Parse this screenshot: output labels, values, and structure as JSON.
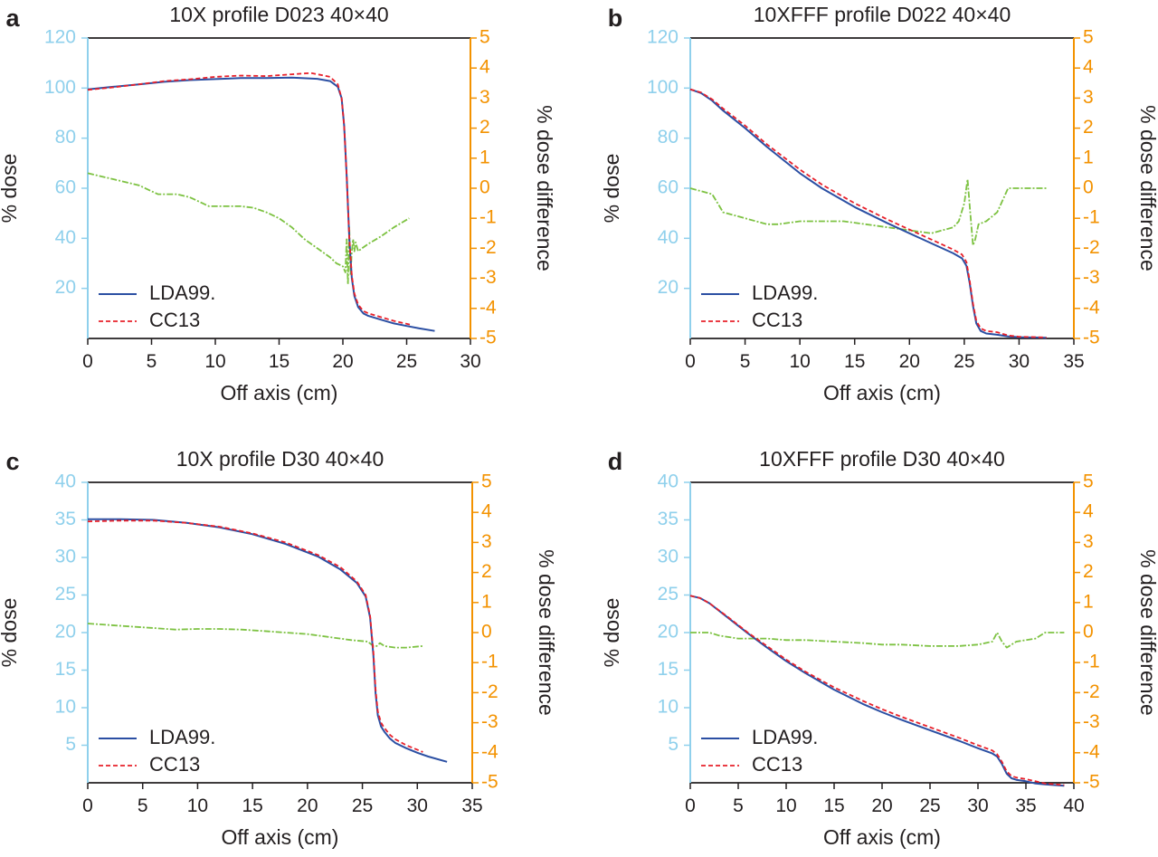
{
  "figure": {
    "colors": {
      "left_axis": "#8fd0ec",
      "right_axis": "#f39200",
      "lda99": "#2b4fa3",
      "cc13": "#e8202a",
      "difference": "#7dc242",
      "text": "#231f20"
    }
  },
  "chart_data": [
    {
      "panel": "a",
      "type": "line",
      "title": "10X profile D023 40×40",
      "xlabel": "Off axis (cm)",
      "ylabel": "% dose",
      "y2label": "% dose difference",
      "xlim": [
        0,
        30
      ],
      "xticks": [
        0,
        5,
        10,
        15,
        20,
        25,
        30
      ],
      "ylim": [
        0,
        120
      ],
      "yticks": [
        20,
        40,
        60,
        80,
        100,
        120
      ],
      "y2lim": [
        -5,
        5
      ],
      "y2ticks": [
        -5,
        -4,
        -3,
        -2,
        -1,
        0,
        1,
        2,
        3,
        4,
        5
      ],
      "legend": {
        "placement": "bottom-left",
        "entries": [
          "LDA99.",
          "CC13"
        ]
      },
      "series": [
        {
          "name": "LDA99.",
          "axis": "left",
          "style": "solid",
          "x": [
            0,
            2,
            4,
            6,
            8,
            10,
            12,
            14,
            16,
            18,
            19,
            19.6,
            19.9,
            20.1,
            20.3,
            20.5,
            20.7,
            20.9,
            21.2,
            21.6,
            22,
            23,
            24,
            25,
            26,
            27.2
          ],
          "y": [
            99.5,
            100.5,
            101.5,
            102.5,
            103.2,
            103.6,
            104,
            104,
            104.2,
            103.7,
            102.8,
            100.5,
            96,
            85,
            65,
            40,
            24,
            17,
            12.5,
            10,
            9,
            7.5,
            6,
            5,
            4,
            3
          ]
        },
        {
          "name": "CC13",
          "axis": "left",
          "style": "dashed",
          "x": [
            0,
            2,
            4,
            6,
            8,
            10,
            12,
            14,
            16,
            17.5,
            19,
            19.6,
            19.9,
            20.1,
            20.3,
            20.5,
            20.7,
            20.9,
            21.2,
            21.6,
            22,
            23,
            24,
            25.3
          ],
          "y": [
            99.3,
            100.3,
            101.5,
            102.8,
            103.5,
            104.5,
            105,
            104.8,
            105.5,
            106,
            104.5,
            101.5,
            96,
            85,
            65,
            40,
            25,
            18,
            13.5,
            11,
            10,
            8.5,
            7,
            5.5
          ]
        },
        {
          "name": "",
          "axis": "right",
          "style": "dash-dot",
          "x": [
            0,
            1,
            2,
            3,
            4,
            5,
            5.5,
            6,
            7,
            8,
            9,
            9.5,
            10,
            11,
            12,
            13,
            14,
            15,
            16,
            17,
            18,
            19,
            19.5,
            20,
            20.2,
            20.3,
            20.4,
            20.5,
            20.6,
            20.7,
            20.8,
            20.9,
            21,
            21.2,
            21.5,
            22,
            23,
            24,
            25.2
          ],
          "y": [
            0.5,
            0.4,
            0.3,
            0.2,
            0.1,
            -0.1,
            -0.2,
            -0.2,
            -0.2,
            -0.3,
            -0.5,
            -0.6,
            -0.6,
            -0.6,
            -0.6,
            -0.65,
            -0.8,
            -1,
            -1.3,
            -1.7,
            -2,
            -2.3,
            -2.5,
            -2.6,
            -2.8,
            -1.7,
            -3.2,
            -1.3,
            -2.9,
            -2.1,
            -1.7,
            -2.1,
            -1.8,
            -2.1,
            -2.0,
            -1.85,
            -1.6,
            -1.3,
            -1.0
          ]
        }
      ]
    },
    {
      "panel": "b",
      "type": "line",
      "title": "10XFFF profile D022 40×40",
      "xlabel": "Off axis (cm)",
      "ylabel": "% dose",
      "y2label": "% dose difference",
      "xlim": [
        0,
        35
      ],
      "xticks": [
        0,
        5,
        10,
        15,
        20,
        25,
        30,
        35
      ],
      "ylim": [
        0,
        120
      ],
      "yticks": [
        20,
        40,
        60,
        80,
        100,
        120
      ],
      "y2lim": [
        -5,
        5
      ],
      "y2ticks": [
        -5,
        -4,
        -3,
        -2,
        -1,
        0,
        1,
        2,
        3,
        4,
        5
      ],
      "legend": {
        "placement": "bottom-left",
        "entries": [
          "LDA99.",
          "CC13"
        ]
      },
      "series": [
        {
          "name": "LDA99.",
          "axis": "left",
          "style": "solid",
          "x": [
            0,
            1,
            2,
            3,
            5,
            7,
            10,
            12,
            15,
            18,
            20,
            22,
            24,
            24.8,
            25.2,
            25.5,
            25.8,
            26.1,
            26.5,
            27,
            28,
            29,
            30,
            32.5
          ],
          "y": [
            99.5,
            98,
            95,
            91,
            84,
            76.5,
            66,
            60,
            52.5,
            46,
            42,
            38,
            34,
            32,
            29,
            22,
            13,
            6,
            3,
            2,
            1.5,
            0.8,
            0.5,
            0.3
          ]
        },
        {
          "name": "CC13",
          "axis": "left",
          "style": "dashed",
          "x": [
            0,
            1,
            2,
            3,
            5,
            7,
            10,
            12,
            15,
            18,
            20,
            22,
            24,
            24.8,
            25.2,
            25.5,
            25.8,
            26.1,
            26.5,
            27,
            28,
            29,
            30,
            32.5
          ],
          "y": [
            99.5,
            98.2,
            95.5,
            91.8,
            85,
            77.5,
            67.5,
            61.5,
            54,
            47.5,
            43.5,
            39.5,
            35.5,
            33.5,
            30.5,
            23,
            14,
            7,
            4,
            3,
            2.5,
            1.2,
            0.7,
            0.4
          ]
        },
        {
          "name": "",
          "axis": "right",
          "style": "dash-dot",
          "x": [
            0,
            1,
            2,
            2.5,
            3,
            4,
            5,
            6,
            7,
            8,
            10,
            12,
            14,
            16,
            18,
            20,
            22,
            23,
            24,
            24.5,
            25,
            25.3,
            25.5,
            25.8,
            26,
            26.3,
            27,
            28,
            28.5,
            29,
            30,
            31,
            32.5
          ],
          "y": [
            0,
            -0.1,
            -0.2,
            -0.5,
            -0.8,
            -0.9,
            -1,
            -1.1,
            -1.2,
            -1.2,
            -1.1,
            -1.1,
            -1.1,
            -1.2,
            -1.3,
            -1.4,
            -1.5,
            -1.4,
            -1.3,
            -1.1,
            -0.5,
            0.3,
            -0.6,
            -1.9,
            -1.7,
            -1.2,
            -1.1,
            -0.8,
            -0.4,
            0,
            0,
            0,
            0
          ]
        }
      ]
    },
    {
      "panel": "c",
      "type": "line",
      "title": "10X profile D30 40×40",
      "xlabel": "Off axis (cm)",
      "ylabel": "% dose",
      "y2label": "% dose difference",
      "xlim": [
        0,
        35
      ],
      "xticks": [
        0,
        5,
        10,
        15,
        20,
        25,
        30,
        35
      ],
      "ylim": [
        0,
        40
      ],
      "yticks": [
        5,
        10,
        15,
        20,
        25,
        30,
        35,
        40
      ],
      "y2lim": [
        -5,
        5
      ],
      "y2ticks": [
        -5,
        -4,
        -3,
        -2,
        -1,
        0,
        1,
        2,
        3,
        4,
        5
      ],
      "legend": {
        "placement": "bottom-left",
        "entries": [
          "LDA99.",
          "CC13"
        ]
      },
      "series": [
        {
          "name": "LDA99.",
          "axis": "left",
          "style": "solid",
          "x": [
            0,
            3,
            6,
            9,
            12,
            15,
            18,
            21,
            23,
            24.5,
            25.3,
            25.7,
            26,
            26.2,
            26.4,
            26.7,
            27,
            27.5,
            28,
            29,
            30,
            31,
            32.7
          ],
          "y": [
            35.1,
            35.1,
            35,
            34.6,
            34,
            33.1,
            31.8,
            30.1,
            28.4,
            26.6,
            24.8,
            22,
            17,
            12,
            9,
            7.5,
            6.8,
            5.9,
            5.3,
            4.6,
            4,
            3.5,
            2.8
          ]
        },
        {
          "name": "CC13",
          "axis": "left",
          "style": "dashed",
          "x": [
            0,
            3,
            6,
            9,
            12,
            15,
            18,
            21,
            23,
            24.5,
            25.3,
            25.7,
            26,
            26.2,
            26.4,
            26.7,
            27,
            27.5,
            28,
            29,
            30.5
          ],
          "y": [
            34.8,
            34.9,
            34.9,
            34.6,
            34.1,
            33.2,
            32,
            30.3,
            28.7,
            26.8,
            25,
            22.2,
            17.5,
            12.5,
            9.5,
            8,
            7.3,
            6.4,
            5.8,
            5,
            4.1
          ]
        },
        {
          "name": "",
          "axis": "right",
          "style": "dash-dot",
          "x": [
            0,
            2,
            4,
            6,
            8,
            10,
            12,
            14,
            16,
            18,
            20,
            22,
            24,
            25.5,
            26,
            26.3,
            26.6,
            27,
            28,
            29,
            30.5
          ],
          "y": [
            0.3,
            0.25,
            0.2,
            0.15,
            0.1,
            0.12,
            0.12,
            0.1,
            0.05,
            0,
            -0.05,
            -0.15,
            -0.25,
            -0.3,
            -0.45,
            -0.45,
            -0.35,
            -0.45,
            -0.5,
            -0.5,
            -0.45
          ]
        }
      ]
    },
    {
      "panel": "d",
      "type": "line",
      "title": "10XFFF profile D30 40×40",
      "xlabel": "Off axis (cm)",
      "ylabel": "% dose",
      "y2label": "% dose difference",
      "xlim": [
        0,
        40
      ],
      "xticks": [
        0,
        5,
        10,
        15,
        20,
        25,
        30,
        35,
        40
      ],
      "ylim": [
        0,
        40
      ],
      "yticks": [
        5,
        10,
        15,
        20,
        25,
        30,
        35,
        40
      ],
      "y2lim": [
        -5,
        5
      ],
      "y2ticks": [
        -5,
        -4,
        -3,
        -2,
        -1,
        0,
        1,
        2,
        3,
        4,
        5
      ],
      "legend": {
        "placement": "bottom-left",
        "entries": [
          "LDA99.",
          "CC13"
        ]
      },
      "series": [
        {
          "name": "LDA99.",
          "axis": "left",
          "style": "solid",
          "x": [
            0,
            1,
            2,
            4,
            6,
            8,
            10,
            12,
            15,
            18,
            20,
            22,
            25,
            28,
            30,
            31.5,
            32,
            32.5,
            33,
            33.5,
            34,
            35,
            36,
            37,
            39
          ],
          "y": [
            24.9,
            24.6,
            23.9,
            21.9,
            19.9,
            18,
            16.2,
            14.6,
            12.4,
            10.5,
            9.4,
            8.4,
            7,
            5.6,
            4.6,
            3.9,
            3.5,
            2.5,
            1.2,
            0.6,
            0.4,
            0.2,
            -0.1,
            -0.2,
            -0.4
          ]
        },
        {
          "name": "CC13",
          "axis": "left",
          "style": "dashed",
          "x": [
            0,
            1,
            2,
            4,
            6,
            8,
            10,
            12,
            15,
            18,
            20,
            22,
            25,
            28,
            30,
            31.5,
            32,
            32.5,
            33,
            33.5,
            34,
            35,
            36,
            37,
            39
          ],
          "y": [
            24.9,
            24.6,
            23.9,
            22,
            20,
            18.2,
            16.4,
            14.8,
            12.7,
            10.9,
            9.8,
            8.8,
            7.4,
            6,
            5,
            4.3,
            3.8,
            2.8,
            1.5,
            0.9,
            0.7,
            0.5,
            0.2,
            -0.1,
            -0.3
          ]
        },
        {
          "name": "",
          "axis": "right",
          "style": "dash-dot",
          "x": [
            0,
            1,
            2,
            3,
            5,
            8,
            10,
            12,
            15,
            18,
            20,
            22,
            25,
            28,
            30,
            31.5,
            32,
            32.5,
            33,
            33.5,
            34,
            35,
            36,
            37,
            39
          ],
          "y": [
            0,
            0,
            0,
            -0.1,
            -0.2,
            -0.2,
            -0.25,
            -0.25,
            -0.3,
            -0.35,
            -0.4,
            -0.4,
            -0.45,
            -0.45,
            -0.4,
            -0.3,
            0,
            -0.3,
            -0.5,
            -0.4,
            -0.3,
            -0.25,
            -0.2,
            0,
            0
          ]
        }
      ]
    }
  ]
}
